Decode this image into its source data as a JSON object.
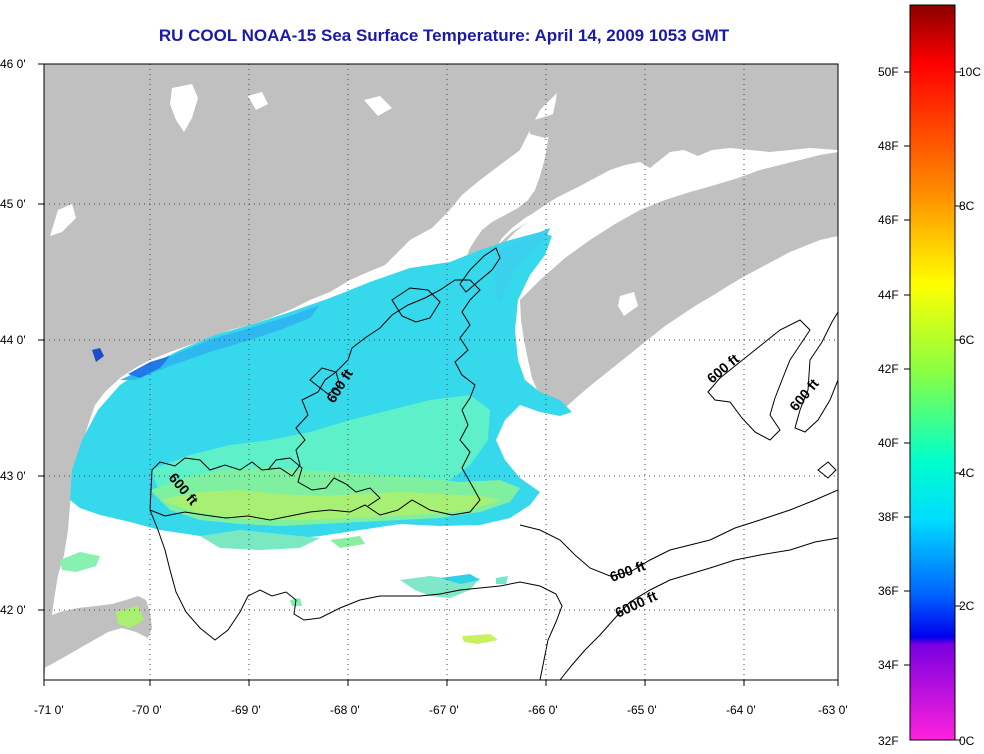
{
  "title": "RU COOL  NOAA-15  Sea Surface Temperature:  April 14, 2009 1053 GMT",
  "map": {
    "lon_ticks": [
      "-71 0'",
      "-70 0'",
      "-69 0'",
      "-68 0'",
      "-67 0'",
      "-66 0'",
      "-65 0'",
      "-64 0'",
      "-63 0'"
    ],
    "lat_ticks": [
      "46 0'",
      "45 0'",
      "44 0'",
      "43 0'",
      "42 0'"
    ],
    "land_color": "#c0c0c0",
    "water_color": "#ffffff",
    "contour_labels": [
      {
        "id": "c1",
        "text": "600 ft"
      },
      {
        "id": "c2",
        "text": "600 ft"
      },
      {
        "id": "c3",
        "text": "600 ft"
      },
      {
        "id": "c4",
        "text": "600 ft"
      },
      {
        "id": "c5",
        "text": "600 ft"
      },
      {
        "id": "c6",
        "text": "6000 ft"
      }
    ]
  },
  "colorbar": {
    "fahrenheit": [
      "50F",
      "48F",
      "46F",
      "44F",
      "42F",
      "40F",
      "38F",
      "36F",
      "34F",
      "32F"
    ],
    "celsius": [
      "10C",
      "8C",
      "6C",
      "4C",
      "2C",
      "0C"
    ],
    "gradient": [
      "#8b0000",
      "#ff0000",
      "#ff8800",
      "#ffff00",
      "#88ff00",
      "#00ff88",
      "#00ffff",
      "#0088ff",
      "#0000ff",
      "#8800ff",
      "#ff00ff"
    ]
  }
}
